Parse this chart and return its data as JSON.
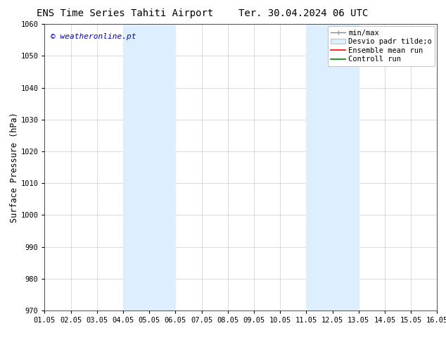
{
  "title_left": "ENS Time Series Tahiti Airport",
  "title_right": "Ter. 30.04.2024 06 UTC",
  "ylabel": "Surface Pressure (hPa)",
  "xlabel": "",
  "ylim": [
    970,
    1060
  ],
  "yticks": [
    970,
    980,
    990,
    1000,
    1010,
    1020,
    1030,
    1040,
    1050,
    1060
  ],
  "xtick_labels": [
    "01.05",
    "02.05",
    "03.05",
    "04.05",
    "05.05",
    "06.05",
    "07.05",
    "08.05",
    "09.05",
    "10.05",
    "11.05",
    "12.05",
    "13.05",
    "14.05",
    "15.05",
    "16.05"
  ],
  "xlim": [
    0,
    15
  ],
  "shaded_bands": [
    {
      "xmin": 3.0,
      "xmax": 5.0,
      "color": "#ddeeff"
    },
    {
      "xmin": 10.0,
      "xmax": 12.0,
      "color": "#ddeeff"
    }
  ],
  "watermark": "© weatheronline.pt",
  "watermark_color": "#0000cc",
  "background_color": "#ffffff",
  "plot_bg_color": "#ffffff",
  "grid_color": "#cccccc",
  "title_fontsize": 10,
  "tick_fontsize": 7.5,
  "ylabel_fontsize": 8.5,
  "legend_fontsize": 7.5
}
